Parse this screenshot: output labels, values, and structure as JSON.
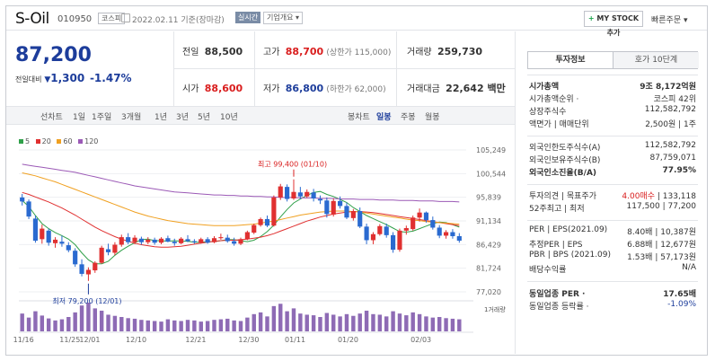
{
  "header": {
    "name": "S-Oil",
    "code": "010950",
    "market": "코스피",
    "date": "2022.02.11 기준(장마감)",
    "tag_realtime": "실시간",
    "tag_company": "기업개요 ▾",
    "mystock_label": "MY STOCK 추가",
    "mystock_plus": "+",
    "quick_order": "빠른주문 ▾"
  },
  "quote": {
    "price": "87,200",
    "change_label": "전일대비",
    "change_arrow": "▼",
    "change_value": "1,300",
    "change_pct": "-1.47%",
    "prev_label": "전일",
    "prev": "88,500",
    "high_label": "고가",
    "high": "88,700",
    "high_note": "(상한가 115,000)",
    "volume_label": "거래량",
    "volume": "259,730",
    "open_label": "시가",
    "open": "88,600",
    "low_label": "저가",
    "low": "86,800",
    "low_note": "(하한가 62,000)",
    "amount_label": "거래대금",
    "amount": "22,642 백만"
  },
  "periods": {
    "line_label": "선차트",
    "line_items": [
      "1일",
      "1주일",
      "3개월",
      "1년",
      "3년",
      "5년",
      "10년"
    ],
    "candle_label": "봉차트",
    "candle_items": [
      "일봉",
      "주봉",
      "월봉"
    ],
    "active": "일봉"
  },
  "legend": [
    {
      "label": "5",
      "color": "#30a04a"
    },
    {
      "label": "20",
      "color": "#e03030"
    },
    {
      "label": "60",
      "color": "#f0a020"
    },
    {
      "label": "120",
      "color": "#9b59b6"
    }
  ],
  "chart_data": {
    "type": "candlestick",
    "y_ticks": [
      105249,
      100544,
      95839,
      91134,
      86429,
      81724,
      77020
    ],
    "ylim": [
      77020,
      105249
    ],
    "x_tick_labels": [
      "11/16",
      "11/25",
      "12/01",
      "12/10",
      "12/21",
      "12/30",
      "01/11",
      "01/20",
      "02/03"
    ],
    "max_label": "최고 99,400 (01/10)",
    "min_label": "최저 79,200 (12/01)",
    "volume_label": "1거래량",
    "up_color": "#e03030",
    "down_color": "#2a6ad0",
    "candles": [
      [
        95800,
        96500,
        94200,
        95000
      ],
      [
        95000,
        95400,
        91500,
        92000
      ],
      [
        91600,
        92200,
        86800,
        87200
      ],
      [
        87500,
        90400,
        86600,
        89600
      ],
      [
        89200,
        89600,
        86200,
        86800
      ],
      [
        86700,
        87900,
        85800,
        87400
      ],
      [
        87000,
        88200,
        86000,
        86600
      ],
      [
        86300,
        86900,
        84900,
        85300
      ],
      [
        85200,
        85700,
        82000,
        82500
      ],
      [
        82500,
        83500,
        80100,
        80600
      ],
      [
        80500,
        81900,
        79200,
        81400
      ],
      [
        81300,
        83100,
        80800,
        82800
      ],
      [
        82800,
        86200,
        82600,
        85800
      ],
      [
        85500,
        86600,
        84300,
        84900
      ],
      [
        84800,
        86900,
        84300,
        86400
      ],
      [
        86400,
        88400,
        86000,
        87900
      ],
      [
        87900,
        88700,
        86500,
        86900
      ],
      [
        86900,
        88300,
        86500,
        87800
      ],
      [
        87600,
        88000,
        86400,
        86900
      ],
      [
        86900,
        87900,
        86500,
        87400
      ],
      [
        87400,
        87800,
        86400,
        86800
      ],
      [
        86800,
        87900,
        86500,
        87600
      ],
      [
        87700,
        88200,
        86900,
        87000
      ],
      [
        87000,
        87600,
        86200,
        86700
      ],
      [
        86700,
        87900,
        86500,
        87600
      ],
      [
        87500,
        88300,
        86900,
        87100
      ],
      [
        87100,
        87500,
        86600,
        86900
      ],
      [
        86800,
        87800,
        86600,
        87500
      ],
      [
        87500,
        87900,
        86600,
        86800
      ],
      [
        86900,
        88100,
        86700,
        87700
      ],
      [
        87700,
        88600,
        87400,
        87900
      ],
      [
        87800,
        88400,
        86800,
        87100
      ],
      [
        87100,
        87800,
        86200,
        86600
      ],
      [
        86600,
        87800,
        86300,
        87500
      ],
      [
        87500,
        89200,
        87300,
        88900
      ],
      [
        88800,
        90600,
        88500,
        90300
      ],
      [
        90300,
        91800,
        90000,
        91500
      ],
      [
        91500,
        92200,
        89900,
        90200
      ],
      [
        90200,
        96200,
        90000,
        95800
      ],
      [
        95800,
        98500,
        95300,
        98000
      ],
      [
        97900,
        98400,
        95000,
        95500
      ],
      [
        95600,
        99400,
        95300,
        96900
      ],
      [
        96800,
        97900,
        95500,
        96000
      ],
      [
        96000,
        97400,
        95700,
        96900
      ],
      [
        96800,
        97500,
        95000,
        95600
      ],
      [
        95500,
        96200,
        94500,
        95200
      ],
      [
        95200,
        95800,
        91800,
        92500
      ],
      [
        92400,
        95600,
        92000,
        95100
      ],
      [
        95100,
        96000,
        93600,
        94100
      ],
      [
        94100,
        94800,
        91500,
        91800
      ],
      [
        91700,
        93500,
        91200,
        93100
      ],
      [
        93100,
        93800,
        89700,
        90000
      ],
      [
        90000,
        90600,
        86500,
        87300
      ],
      [
        87300,
        88900,
        86500,
        88500
      ],
      [
        88500,
        90500,
        88200,
        90100
      ],
      [
        90000,
        90600,
        87800,
        88300
      ],
      [
        88300,
        88900,
        84800,
        85400
      ],
      [
        85400,
        89600,
        85000,
        89200
      ],
      [
        89200,
        90200,
        88400,
        89700
      ],
      [
        89500,
        92200,
        89200,
        91800
      ],
      [
        91800,
        93600,
        91000,
        92800
      ],
      [
        92800,
        93000,
        90800,
        91300
      ],
      [
        91300,
        92000,
        89400,
        89800
      ],
      [
        89800,
        90300,
        87700,
        88200
      ],
      [
        88200,
        89300,
        87600,
        88900
      ],
      [
        88900,
        89500,
        87600,
        88100
      ],
      [
        88100,
        88700,
        86800,
        87200
      ]
    ],
    "ma": {
      "5": [
        95200,
        94000,
        92200,
        90600,
        89600,
        88800,
        88200,
        87500,
        86400,
        84800,
        83400,
        82600,
        82600,
        83100,
        84300,
        85300,
        86100,
        86800,
        87400,
        87500,
        87200,
        87200,
        87100,
        87200,
        87100,
        87100,
        86900,
        86900,
        87000,
        87000,
        87200,
        87400,
        87400,
        87200,
        87000,
        87300,
        88000,
        89000,
        90300,
        91900,
        93400,
        94700,
        95500,
        96200,
        96800,
        97000,
        96400,
        96000,
        95400,
        94800,
        93800,
        93000,
        92200,
        91600,
        91000,
        90400,
        89700,
        89000,
        88900,
        89100,
        89600,
        90100,
        90600,
        90900,
        90800,
        90400,
        89900
      ],
      "20": [
        96800,
        96400,
        95900,
        95400,
        94900,
        94300,
        93700,
        93000,
        92300,
        91500,
        90700,
        89900,
        89200,
        88600,
        88000,
        87500,
        87100,
        86700,
        86400,
        86200,
        86000,
        85900,
        85900,
        86000,
        86100,
        86300,
        86500,
        86700,
        86900,
        87100,
        87200,
        87300,
        87300,
        87400,
        87500,
        87700,
        87900,
        88200,
        88600,
        89100,
        89600,
        90100,
        90600,
        91100,
        91500,
        91900,
        92200,
        92500,
        92700,
        92900,
        93000,
        93000,
        92900,
        92800,
        92600,
        92400,
        92200,
        92000,
        91800,
        91600,
        91400,
        91200,
        91000,
        90800,
        90600,
        90400,
        90200
      ],
      "60": [
        100700,
        100400,
        100100,
        99700,
        99300,
        98900,
        98400,
        97900,
        97400,
        96900,
        96400,
        95900,
        95400,
        94900,
        94400,
        93900,
        93400,
        92900,
        92500,
        92100,
        91800,
        91500,
        91200,
        91000,
        90800,
        90600,
        90500,
        90400,
        90300,
        90200,
        90200,
        90200,
        90200,
        90300,
        90400,
        90500,
        90700,
        90900,
        91100,
        91400,
        91700,
        92000,
        92300,
        92500,
        92700,
        92900,
        93000,
        93100,
        93100,
        93100,
        93000,
        92900,
        92700,
        92500,
        92300,
        92100,
        91900,
        91700,
        91500,
        91300,
        91200,
        91000,
        90900,
        90800,
        90700,
        90600,
        90500
      ],
      "120": [
        102400,
        102200,
        102000,
        101800,
        101600,
        101400,
        101200,
        101000,
        100800,
        100500,
        100200,
        99900,
        99600,
        99300,
        99000,
        98700,
        98400,
        98100,
        97900,
        97700,
        97500,
        97300,
        97100,
        96900,
        96800,
        96700,
        96600,
        96500,
        96400,
        96300,
        96300,
        96200,
        96200,
        96100,
        96100,
        96000,
        96000,
        95900,
        95900,
        95800,
        95800,
        95800,
        95700,
        95700,
        95700,
        95600,
        95600,
        95600,
        95500,
        95500,
        95500,
        95400,
        95400,
        95400,
        95300,
        95300,
        95300,
        95200,
        95200,
        95200,
        95100,
        95100,
        95100,
        95000,
        95000,
        95000,
        94900
      ]
    },
    "volume": [
      62,
      48,
      70,
      55,
      45,
      38,
      42,
      50,
      66,
      90,
      100,
      80,
      72,
      58,
      54,
      50,
      46,
      44,
      40,
      38,
      36,
      34,
      42,
      38,
      36,
      40,
      38,
      34,
      36,
      40,
      42,
      44,
      38,
      36,
      48,
      60,
      66,
      52,
      88,
      96,
      70,
      80,
      62,
      58,
      56,
      50,
      64,
      58,
      52,
      60,
      54,
      62,
      72,
      60,
      58,
      52,
      70,
      62,
      56,
      66,
      60,
      52,
      48,
      50,
      46,
      44,
      42
    ]
  },
  "investment": {
    "tab_active": "투자정보",
    "tab_other": "호가 10단계",
    "market_cap_label": "시가총액",
    "market_cap": "9조 8,172억원",
    "rank_label": "시가총액순위 ·",
    "rank": "코스피 42위",
    "shares_label": "상장주식수",
    "shares": "112,582,792",
    "face_label": "액면가 | 매매단위",
    "face": "2,500원 | 1주",
    "foreign_limit_label": "외국인한도주식수(A)",
    "foreign_limit": "112,582,792",
    "foreign_hold_label": "외국인보유주식수(B)",
    "foreign_hold": "87,759,071",
    "foreign_ratio_label": "외국인소진율(B/A)",
    "foreign_ratio": "77.95%",
    "opinion_label": "투자의견 | 목표주가",
    "opinion": "4.00매수",
    "target": "| 133,118",
    "week52_label": "52주최고 | 최저",
    "week52": "117,500 | 77,200",
    "per_label": "PER | EPS(2021.09)",
    "per": "8.40배 | 10,387원",
    "est_per_label": "추정PER | EPS",
    "est_per": "6.88배 | 12,677원",
    "pbr_label": "PBR | BPS (2021.09)",
    "pbr": "1.53배 | 57,173원",
    "div_label": "배당수익률",
    "div": "N/A",
    "industry_per_label": "동일업종 PER ·",
    "industry_per": "17.65배",
    "industry_rate_label": "동일업종 등락률 ·",
    "industry_rate": "-1.09%"
  }
}
